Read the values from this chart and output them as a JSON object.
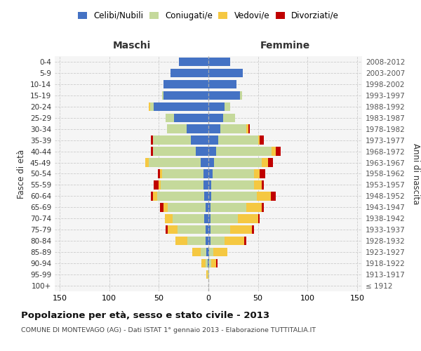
{
  "age_groups": [
    "100+",
    "95-99",
    "90-94",
    "85-89",
    "80-84",
    "75-79",
    "70-74",
    "65-69",
    "60-64",
    "55-59",
    "50-54",
    "45-49",
    "40-44",
    "35-39",
    "30-34",
    "25-29",
    "20-24",
    "15-19",
    "10-14",
    "5-9",
    "0-4"
  ],
  "birth_years": [
    "≤ 1912",
    "1913-1917",
    "1918-1922",
    "1923-1927",
    "1928-1932",
    "1933-1937",
    "1938-1942",
    "1943-1947",
    "1948-1952",
    "1953-1957",
    "1958-1962",
    "1963-1967",
    "1968-1972",
    "1973-1977",
    "1978-1982",
    "1983-1987",
    "1988-1992",
    "1993-1997",
    "1998-2002",
    "2003-2007",
    "2008-2012"
  ],
  "maschi_celibi": [
    0,
    0,
    1,
    2,
    3,
    3,
    4,
    3,
    4,
    5,
    5,
    8,
    13,
    18,
    22,
    35,
    55,
    45,
    45,
    38,
    30
  ],
  "maschi_coniugati": [
    0,
    1,
    2,
    6,
    18,
    28,
    32,
    38,
    48,
    43,
    42,
    52,
    43,
    38,
    20,
    8,
    4,
    2,
    0,
    0,
    0
  ],
  "maschi_vedovi": [
    0,
    1,
    4,
    8,
    12,
    10,
    8,
    4,
    4,
    2,
    2,
    4,
    0,
    0,
    0,
    0,
    1,
    0,
    0,
    0,
    0
  ],
  "maschi_divorziati": [
    0,
    0,
    0,
    0,
    0,
    2,
    0,
    4,
    2,
    5,
    2,
    0,
    2,
    2,
    0,
    0,
    0,
    0,
    0,
    0,
    0
  ],
  "femmine_nubili": [
    0,
    0,
    1,
    1,
    2,
    2,
    2,
    2,
    3,
    3,
    4,
    6,
    8,
    10,
    12,
    15,
    16,
    32,
    28,
    35,
    22
  ],
  "femmine_coniugate": [
    0,
    0,
    2,
    4,
    14,
    20,
    28,
    36,
    46,
    43,
    42,
    48,
    56,
    40,
    26,
    12,
    6,
    2,
    0,
    0,
    0
  ],
  "femmine_vedove": [
    0,
    1,
    5,
    14,
    20,
    22,
    20,
    16,
    14,
    8,
    6,
    6,
    4,
    2,
    2,
    0,
    0,
    0,
    0,
    0,
    0
  ],
  "femmine_divorziate": [
    0,
    0,
    1,
    0,
    2,
    2,
    2,
    2,
    5,
    2,
    5,
    5,
    5,
    4,
    2,
    0,
    0,
    0,
    0,
    0,
    0
  ],
  "color_celibi": "#4472C4",
  "color_coniugati": "#c5d99b",
  "color_vedovi": "#f5c842",
  "color_divorziati": "#c00000",
  "xlim": 155,
  "xticks": [
    -150,
    -100,
    -50,
    0,
    50,
    100,
    150
  ],
  "title": "Popolazione per età, sesso e stato civile - 2013",
  "subtitle": "COMUNE DI MONTEVAGO (AG) - Dati ISTAT 1° gennaio 2013 - Elaborazione TUTTITALIA.IT",
  "ylabel_left": "Fasce di età",
  "ylabel_right": "Anni di nascita",
  "xlabel_maschi": "Maschi",
  "xlabel_femmine": "Femmine",
  "bg_color": "#f5f5f5",
  "legend_labels": [
    "Celibi/Nubili",
    "Coniugati/e",
    "Vedovi/e",
    "Divorziati/e"
  ]
}
